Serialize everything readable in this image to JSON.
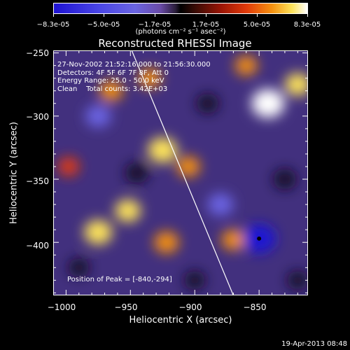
{
  "colorbar": {
    "ticks": [
      "-8.3e-05",
      "-5.0e-05",
      "-1.7e-05",
      "1.7e-05",
      "5.0e-05",
      "8.3e-05"
    ],
    "units": "(photons cm⁻² s⁻¹ asec⁻²)",
    "range": [
      -8.3e-05,
      8.3e-05
    ],
    "colors": [
      "#1e12d2",
      "#6a64e2",
      "#000000",
      "#9b1505",
      "#f5900f",
      "#ffffff"
    ]
  },
  "chart_data": {
    "type": "heatmap",
    "title": "Reconstructed RHESSI Image",
    "xlabel": "Heliocentric X (arcsec)",
    "ylabel": "Heliocentric Y (arcsec)",
    "xlim": [
      -1010,
      -812
    ],
    "ylim": [
      -442,
      -248
    ],
    "xticks": [
      -1000,
      -950,
      -900,
      -850
    ],
    "yticks": [
      -250,
      -300,
      -350,
      -400
    ],
    "annotations": [
      "27-Nov-2002 21:52:16.000 to 21:56:30.000",
      "Detectors: 4F 5F 6F 7F 8F, Att 0",
      "Energy Range: 25.0 - 50.0 keV",
      "Clean    Total counts: 3.42E+03"
    ],
    "peak_label": "Position of Peak = [-840,-294]",
    "peak": [
      -840,
      -294
    ],
    "limb_line": [
      [
        -949,
        -248
      ],
      [
        -870,
        -442
      ]
    ],
    "blobs": [
      {
        "x": -843,
        "y": -290,
        "v": 8e-05
      },
      {
        "x": -820,
        "y": -275,
        "v": 5e-05
      },
      {
        "x": -925,
        "y": -327,
        "v": 6.5e-05
      },
      {
        "x": -975,
        "y": -392,
        "v": 6e-05
      },
      {
        "x": -952,
        "y": -375,
        "v": 5e-05
      },
      {
        "x": -922,
        "y": -400,
        "v": 4.5e-05
      },
      {
        "x": -870,
        "y": -398,
        "v": 4e-05
      },
      {
        "x": -905,
        "y": -340,
        "v": 4e-05
      },
      {
        "x": -965,
        "y": -280,
        "v": 4e-05
      },
      {
        "x": -935,
        "y": -270,
        "v": 3.5e-05
      },
      {
        "x": -998,
        "y": -340,
        "v": 3e-05
      },
      {
        "x": -860,
        "y": -260,
        "v": 3.5e-05
      },
      {
        "x": -975,
        "y": -300,
        "v": -5e-05
      },
      {
        "x": -850,
        "y": -397,
        "v": -8.3e-05
      },
      {
        "x": -880,
        "y": -370,
        "v": -5e-05
      },
      {
        "x": -945,
        "y": -345,
        "v": -4e-05
      },
      {
        "x": -890,
        "y": -290,
        "v": -3.5e-05
      },
      {
        "x": -830,
        "y": -350,
        "v": -4e-05
      },
      {
        "x": -820,
        "y": -430,
        "v": -3e-05
      },
      {
        "x": -990,
        "y": -420,
        "v": -3e-05
      },
      {
        "x": -900,
        "y": -430,
        "v": -3e-05
      }
    ]
  },
  "timestamp": "19-Apr-2013 08:48"
}
